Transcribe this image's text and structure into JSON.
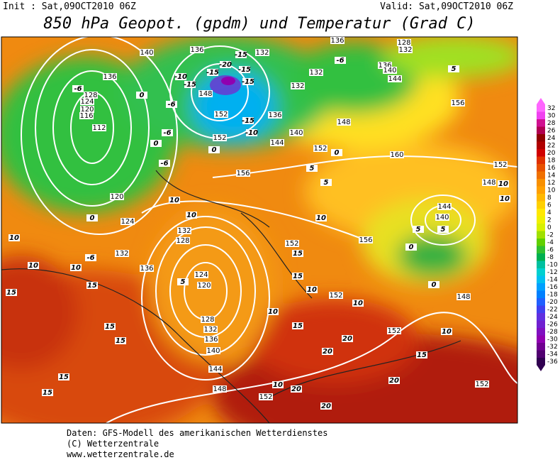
{
  "header": {
    "init": "Init : Sat,09OCT2010 06Z",
    "valid": "Valid: Sat,09OCT2010 06Z",
    "title": "850 hPa Geopot. (gpdm) und Temperatur (Grad C)"
  },
  "footer": {
    "lines": [
      "Daten: GFS-Modell des amerikanischen Wetterdienstes",
      "(C) Wetterzentrale",
      "www.wetterzentrale.de"
    ]
  },
  "legend": {
    "values": [
      32,
      30,
      28,
      26,
      24,
      22,
      20,
      18,
      16,
      14,
      12,
      10,
      8,
      6,
      4,
      2,
      0,
      -2,
      -4,
      -6,
      -8,
      -10,
      -12,
      -14,
      -16,
      -18,
      -20,
      -22,
      -24,
      -26,
      -28,
      -30,
      -32,
      -34,
      -36
    ],
    "colors": [
      "#ff66ff",
      "#f040f0",
      "#d01090",
      "#b00050",
      "#900000",
      "#b00000",
      "#d00000",
      "#e03000",
      "#e85000",
      "#f07000",
      "#f89000",
      "#ffa000",
      "#ffb800",
      "#ffd000",
      "#ffe800",
      "#f0f000",
      "#d8f000",
      "#a0e000",
      "#60d000",
      "#30c030",
      "#00b050",
      "#00c0a0",
      "#00d0d0",
      "#00c0f0",
      "#00a0ff",
      "#0080ff",
      "#2060ff",
      "#4040f0",
      "#6030e0",
      "#7020d0",
      "#8010c0",
      "#9000b0",
      "#700090",
      "#500070",
      "#300050"
    ]
  },
  "geopotential_labels": [
    140,
    136,
    132,
    136,
    128,
    124,
    120,
    116,
    112,
    120,
    124,
    132,
    136,
    132,
    128,
    124,
    120,
    128,
    132,
    136,
    140,
    144,
    148,
    152,
    152,
    152,
    156,
    136,
    140,
    144,
    152,
    148,
    160,
    156,
    152,
    152,
    152,
    152,
    148,
    152,
    148,
    144,
    140,
    132,
    132,
    136,
    136,
    140,
    144,
    128,
    132,
    156,
    148
  ],
  "temperature_labels": [
    -6,
    0,
    -6,
    -6,
    0,
    -6,
    10,
    10,
    10,
    15,
    15,
    15,
    15,
    15,
    15,
    10,
    10,
    5,
    10,
    10,
    15,
    15,
    15,
    10,
    20,
    20,
    20,
    20,
    20,
    15,
    10,
    10,
    0,
    0,
    5,
    5,
    10,
    10,
    10,
    5,
    5,
    -6,
    0,
    -6,
    0,
    -10,
    5,
    0,
    -15,
    -15,
    -15,
    -15,
    -20,
    -10,
    -15,
    -15
  ]
}
